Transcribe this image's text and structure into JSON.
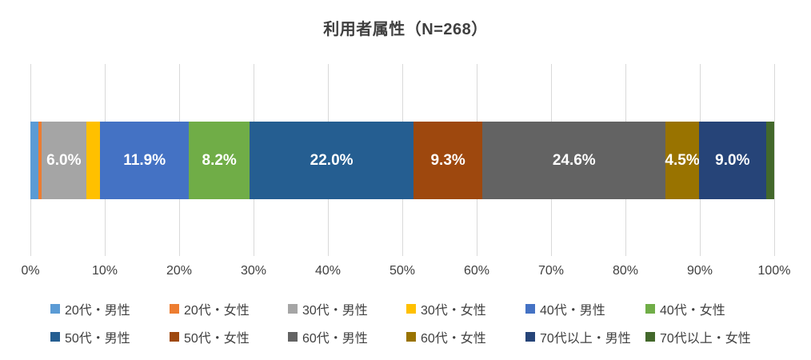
{
  "title": "利用者属性（N=268）",
  "chart_data": {
    "type": "bar",
    "stacked": true,
    "orientation": "horizontal",
    "title": "利用者属性（N=268）",
    "sample_size_label": "N=268",
    "unit": "%",
    "series": [
      {
        "name": "20代・男性",
        "value": 1.1,
        "label": "",
        "color": "#5B9BD5"
      },
      {
        "name": "20代・女性",
        "value": 0.4,
        "label": "",
        "color": "#ED7D31"
      },
      {
        "name": "30代・男性",
        "value": 6.0,
        "label": "6.0%",
        "color": "#A5A5A5"
      },
      {
        "name": "30代・女性",
        "value": 1.9,
        "label": "",
        "color": "#FFC000"
      },
      {
        "name": "40代・男性",
        "value": 11.9,
        "label": "11.9%",
        "color": "#4472C4"
      },
      {
        "name": "40代・女性",
        "value": 8.2,
        "label": "8.2%",
        "color": "#70AD47"
      },
      {
        "name": "50代・男性",
        "value": 22.0,
        "label": "22.0%",
        "color": "#255E91"
      },
      {
        "name": "50代・女性",
        "value": 9.3,
        "label": "9.3%",
        "color": "#9E480E"
      },
      {
        "name": "60代・男性",
        "value": 24.6,
        "label": "24.6%",
        "color": "#636363"
      },
      {
        "name": "60代・女性",
        "value": 4.5,
        "label": "4.5%",
        "color": "#997300"
      },
      {
        "name": "70代以上・男性",
        "value": 9.0,
        "label": "9.0%",
        "color": "#264478"
      },
      {
        "name": "70代以上・女性",
        "value": 1.1,
        "label": "",
        "color": "#43682B"
      }
    ],
    "x_axis": {
      "range": [
        0,
        100
      ],
      "ticks": [
        "0%",
        "10%",
        "20%",
        "30%",
        "40%",
        "50%",
        "60%",
        "70%",
        "80%",
        "90%",
        "100%"
      ]
    },
    "grid": true,
    "legend_position": "bottom",
    "legend_rows": 2,
    "colors": {
      "gridline": "#d9d9d9",
      "axis_text": "#404040",
      "title_text": "#3f3f3f",
      "data_label_text": "#ffffff"
    }
  }
}
